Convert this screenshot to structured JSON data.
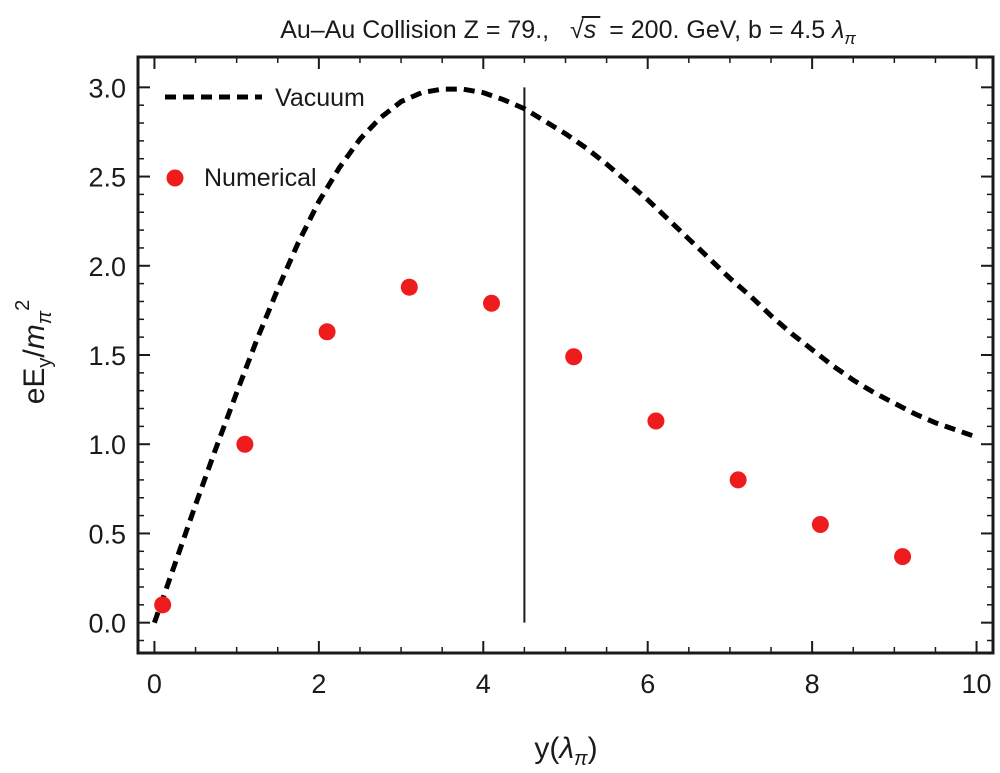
{
  "chart_data": {
    "type": "scatter",
    "title": "Au–Au Collision Z = 79.,  √s = 200. GeV, b = 4.5 λπ",
    "title_parts": {
      "prefix": "Au–Au Collision Z = 79.,",
      "sqrt_arg": "s",
      "suffix": "= 200. GeV, b = 4.5 ",
      "lambda": "λ",
      "pi_sub": "π"
    },
    "xlabel": "y(λπ)",
    "xlabel_parts": {
      "pre": "y(",
      "lambda": "λ",
      "pi_sub": "π",
      "post": ")"
    },
    "ylabel": "eEy/mπ²",
    "ylabel_parts": {
      "e": "eE",
      "y_sub": "y",
      "slash": "/",
      "m": "m",
      "pi_sub": "π",
      "sq": "2"
    },
    "xlim": [
      -0.2,
      10.2
    ],
    "ylim": [
      -0.17,
      3.17
    ],
    "x_ticks": [
      0,
      2,
      4,
      6,
      8,
      10
    ],
    "x_tick_labels": [
      "0",
      "2",
      "4",
      "6",
      "8",
      "10"
    ],
    "y_ticks": [
      0.0,
      0.5,
      1.0,
      1.5,
      2.0,
      2.5,
      3.0
    ],
    "y_tick_labels": [
      "0.0",
      "0.5",
      "1.0",
      "1.5",
      "2.0",
      "2.5",
      "3.0"
    ],
    "grid": false,
    "legend_position": "top-left",
    "vertical_line_x": 4.5,
    "series": [
      {
        "name": "Vacuum",
        "kind": "line",
        "style": "dashed",
        "color": "#000000",
        "x": [
          0,
          0.25,
          0.5,
          0.75,
          1.0,
          1.25,
          1.5,
          1.75,
          2.0,
          2.25,
          2.5,
          2.75,
          3.0,
          3.25,
          3.5,
          3.75,
          4.0,
          4.25,
          4.5,
          4.75,
          5.0,
          5.25,
          5.5,
          5.75,
          6.0,
          6.25,
          6.5,
          6.75,
          7.0,
          7.25,
          7.5,
          7.75,
          8.0,
          8.25,
          8.5,
          8.75,
          9.0,
          9.25,
          9.5,
          9.75,
          10.0
        ],
        "y": [
          0.0,
          0.33,
          0.66,
          0.98,
          1.29,
          1.59,
          1.87,
          2.13,
          2.36,
          2.55,
          2.71,
          2.83,
          2.92,
          2.97,
          2.99,
          2.99,
          2.97,
          2.93,
          2.88,
          2.81,
          2.74,
          2.66,
          2.57,
          2.47,
          2.37,
          2.26,
          2.15,
          2.04,
          1.93,
          1.83,
          1.72,
          1.62,
          1.53,
          1.44,
          1.36,
          1.29,
          1.23,
          1.17,
          1.12,
          1.08,
          1.04
        ]
      },
      {
        "name": "Numerical",
        "kind": "scatter",
        "color": "#ee1c1c",
        "x": [
          0.1,
          1.1,
          2.1,
          3.1,
          4.1,
          5.1,
          6.1,
          7.1,
          8.1,
          9.1
        ],
        "y": [
          0.1,
          1.0,
          1.63,
          1.88,
          1.79,
          1.49,
          1.13,
          0.8,
          0.55,
          0.37
        ]
      }
    ]
  }
}
